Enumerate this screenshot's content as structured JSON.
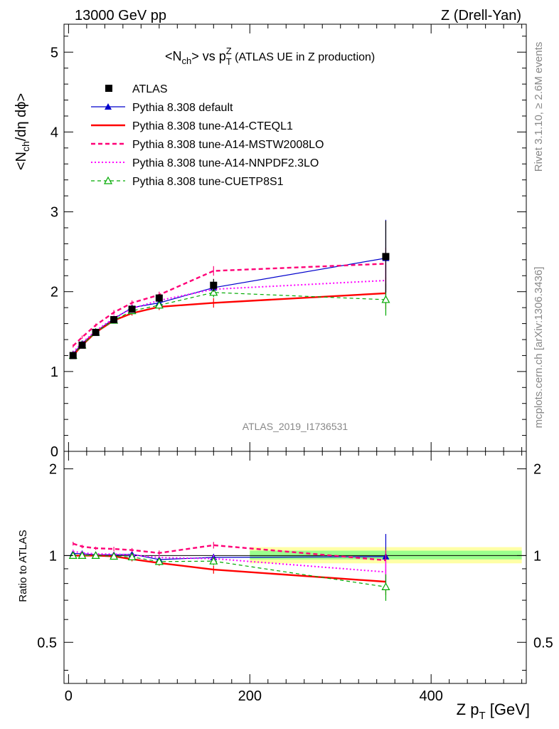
{
  "header": {
    "left": "13000 GeV pp",
    "right": "Z (Drell-Yan)"
  },
  "title": {
    "pre": "<N",
    "sub1": "ch",
    "mid": "> vs p",
    "sub2": "T",
    "sup2": "Z",
    "post": " (ATLAS UE in Z production)"
  },
  "ylabel": {
    "pre": "<N",
    "sub": "ch",
    "post": "/dη dϕ>"
  },
  "ratio_ylabel": "Ratio to ATLAS",
  "xlabel": {
    "pre": "Z p",
    "sub": "T",
    "post": " [GeV]"
  },
  "side_top": "Rivet 3.1.10, ≥ 2.6M events",
  "side_bottom": "mcplots.cern.ch [arXiv:1306.3436]",
  "watermark": "ATLAS_2019_I1736531",
  "chart_data": {
    "type": "line",
    "xlim": [
      -5,
      505
    ],
    "main_ylim": [
      0,
      5.35
    ],
    "ratio_ylim": [
      0.36,
      2.3
    ],
    "x_ticks": [
      0,
      200,
      400
    ],
    "main_y_ticks": [
      0,
      1,
      2,
      3,
      4,
      5
    ],
    "ratio_y_ticks_left": [
      0.5,
      1,
      2
    ],
    "ratio_y_ticks_right": [
      0.5,
      1,
      2
    ],
    "band_x": [
      200,
      500
    ],
    "band_yellow": [
      0.94,
      1.07
    ],
    "band_green": [
      0.97,
      1.04
    ],
    "x": [
      5,
      15,
      30,
      50,
      70,
      100,
      160,
      350
    ],
    "data": {
      "name": "ATLAS",
      "values": [
        1.2,
        1.33,
        1.49,
        1.65,
        1.78,
        1.92,
        2.08,
        2.44
      ],
      "err": [
        0.03,
        0.03,
        0.03,
        0.03,
        0.04,
        0.05,
        0.08,
        0.45
      ]
    },
    "series": [
      {
        "name": "Pythia 8.308 default",
        "color": "#0000cc",
        "style": "solid",
        "marker": "triangle",
        "width": 1.2,
        "values": [
          1.22,
          1.35,
          1.5,
          1.66,
          1.8,
          1.86,
          2.05,
          2.42
        ],
        "err": [
          0.02,
          0.02,
          0.02,
          0.03,
          0.03,
          0.04,
          0.06,
          0.48
        ]
      },
      {
        "name": "Pythia 8.308 tune-A14-CTEQL1",
        "color": "#ff0000",
        "style": "solid",
        "marker": "none",
        "width": 2.4,
        "values": [
          1.2,
          1.33,
          1.49,
          1.64,
          1.73,
          1.81,
          1.86,
          1.98
        ],
        "err": [
          0.02,
          0.02,
          0.02,
          0.03,
          0.03,
          0.04,
          0.06,
          0.2
        ]
      },
      {
        "name": "Pythia 8.308 tune-A14-MSTW2008LO",
        "color": "#ff0077",
        "style": "dashed",
        "marker": "none",
        "width": 2.4,
        "values": [
          1.32,
          1.43,
          1.58,
          1.74,
          1.86,
          1.96,
          2.26,
          2.35
        ],
        "err": [
          0.02,
          0.02,
          0.02,
          0.03,
          0.03,
          0.04,
          0.06,
          0.2
        ]
      },
      {
        "name": "Pythia 8.308 tune-A14-NNPDF2.3LO",
        "color": "#ff00ff",
        "style": "dotted",
        "marker": "none",
        "width": 2.0,
        "values": [
          1.24,
          1.36,
          1.51,
          1.67,
          1.79,
          1.89,
          2.03,
          2.14
        ],
        "err": [
          0.02,
          0.02,
          0.02,
          0.03,
          0.03,
          0.04,
          0.06,
          0.2
        ]
      },
      {
        "name": "Pythia 8.308 tune-CUETP8S1",
        "color": "#00aa00",
        "style": "dashed-thin",
        "marker": "open-triangle",
        "width": 1.2,
        "values": [
          1.2,
          1.33,
          1.49,
          1.64,
          1.76,
          1.83,
          1.99,
          1.9
        ],
        "err": [
          0.02,
          0.02,
          0.02,
          0.03,
          0.03,
          0.04,
          0.06,
          0.2
        ]
      }
    ]
  }
}
